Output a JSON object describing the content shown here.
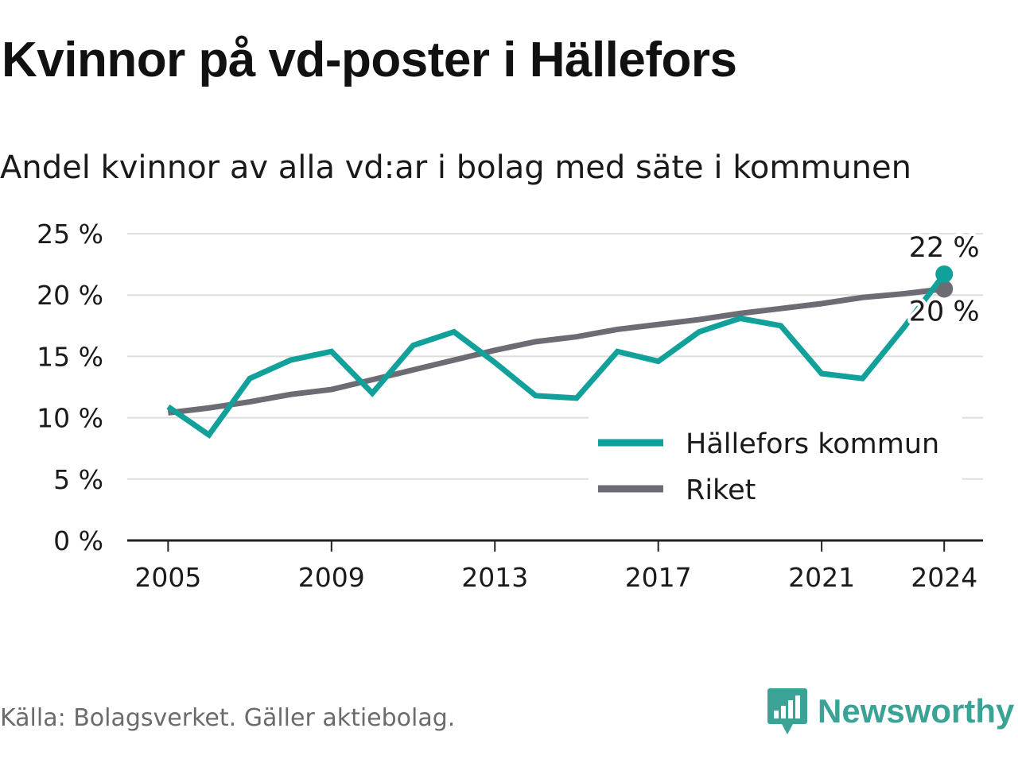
{
  "title": "Kvinnor på vd-poster i Hällefors",
  "subtitle": "Andel kvinnor av alla vd:ar i bolag med säte i kommunen",
  "footer": {
    "source": "Källa: Bolagsverket. Gäller aktiebolag.",
    "brand": "Newsworthy",
    "brand_icon": "bar-chart-speech-bubble-icon"
  },
  "colors": {
    "kommun": "#12a19a",
    "riket": "#6d6c74",
    "grid": "#dddddd",
    "axis": "#222222",
    "brand": "#3aa396"
  },
  "chart_data": {
    "type": "line",
    "title": "Kvinnor på vd-poster i Hällefors",
    "subtitle": "Andel kvinnor av alla vd:ar i bolag med säte i kommunen",
    "xlabel": "",
    "ylabel": "",
    "x": [
      2005,
      2006,
      2007,
      2008,
      2009,
      2010,
      2011,
      2012,
      2013,
      2014,
      2015,
      2016,
      2017,
      2018,
      2019,
      2020,
      2021,
      2022,
      2023,
      2024
    ],
    "x_ticks": [
      2005,
      2009,
      2013,
      2017,
      2021,
      2024
    ],
    "y_ticks": [
      0,
      5,
      10,
      15,
      20,
      25
    ],
    "y_tick_labels": [
      "0 %",
      "5 %",
      "10 %",
      "15 %",
      "20 %",
      "25 %"
    ],
    "ylim": [
      0,
      25
    ],
    "xlim": [
      2004.0,
      2024.95
    ],
    "grid": "horizontal",
    "legend_position": "bottom-right",
    "series": [
      {
        "name": "Hällefors kommun",
        "key": "kommun",
        "values": [
          10.9,
          8.6,
          13.2,
          14.7,
          15.4,
          12.0,
          15.9,
          17.0,
          14.5,
          11.8,
          11.6,
          15.4,
          14.6,
          17.0,
          18.1,
          17.5,
          13.6,
          13.2,
          17.3,
          21.7
        ],
        "end_label": "22 %"
      },
      {
        "name": "Riket",
        "key": "riket",
        "values": [
          10.4,
          10.8,
          11.3,
          11.9,
          12.3,
          13.1,
          13.9,
          14.7,
          15.5,
          16.2,
          16.6,
          17.2,
          17.6,
          18.0,
          18.5,
          18.9,
          19.3,
          19.8,
          20.1,
          20.5
        ],
        "end_label": "20 %"
      }
    ]
  }
}
